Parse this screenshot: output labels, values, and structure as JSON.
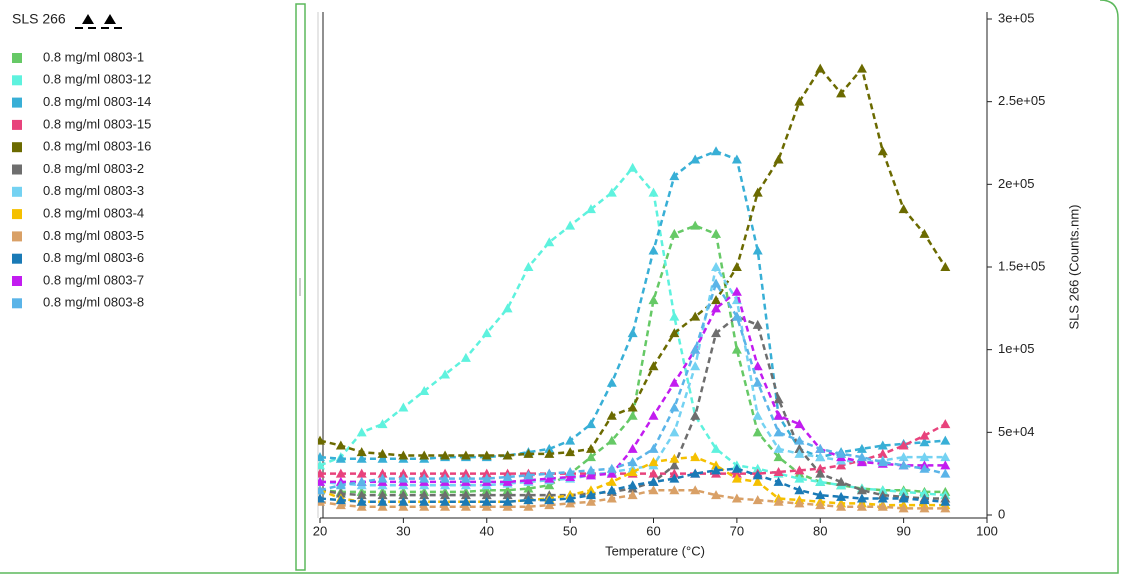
{
  "chart_data": {
    "type": "line",
    "legend_title": "SLS 266",
    "xlabel": "Temperature (°C)",
    "ylabel": "SLS 266  (Counts.nm)",
    "xlim": [
      20,
      100
    ],
    "xticks": [
      20,
      30,
      40,
      50,
      60,
      70,
      80,
      90,
      100
    ],
    "ylim": [
      0,
      300000
    ],
    "yticks": [
      0,
      {
        "value": 50000,
        "label": "5e+04"
      },
      {
        "value": 100000,
        "label": "1e+05"
      },
      {
        "value": 150000,
        "label": "1.5e+05"
      },
      {
        "value": 200000,
        "label": "2e+05"
      },
      {
        "value": 250000,
        "label": "2.5e+05"
      },
      {
        "value": 300000,
        "label": "3e+05"
      }
    ],
    "grid": false,
    "x": [
      20,
      22.5,
      25,
      27.5,
      30,
      32.5,
      35,
      37.5,
      40,
      42.5,
      45,
      47.5,
      50,
      52.5,
      55,
      57.5,
      60,
      62.5,
      65,
      67.5,
      70,
      72.5,
      75,
      77.5,
      80,
      82.5,
      85,
      87.5,
      90,
      92.5,
      95
    ],
    "series": [
      {
        "name": "0.8 mg/ml 0803-1",
        "color": "#66c966",
        "values": [
          15000,
          14000,
          14000,
          14000,
          14000,
          14000,
          14000,
          14000,
          15000,
          15000,
          16000,
          18000,
          25000,
          35000,
          45000,
          60000,
          130000,
          170000,
          175000,
          170000,
          100000,
          50000,
          35000,
          25000,
          20000,
          18000,
          16000,
          15000,
          15000,
          14000,
          14000
        ]
      },
      {
        "name": "0.8 mg/ml 0803-12",
        "color": "#5ef2de",
        "values": [
          30000,
          35000,
          50000,
          55000,
          65000,
          75000,
          85000,
          95000,
          110000,
          125000,
          150000,
          165000,
          175000,
          185000,
          195000,
          210000,
          195000,
          120000,
          60000,
          40000,
          30000,
          28000,
          25000,
          22000,
          20000,
          18000,
          16000,
          15000,
          14000,
          13000,
          12000
        ]
      },
      {
        "name": "0.8 mg/ml 0803-14",
        "color": "#38afd6",
        "values": [
          35000,
          34000,
          34000,
          34000,
          34000,
          34000,
          35000,
          35000,
          35000,
          36000,
          38000,
          40000,
          45000,
          55000,
          80000,
          110000,
          160000,
          205000,
          215000,
          220000,
          215000,
          160000,
          60000,
          40000,
          35000,
          38000,
          40000,
          42000,
          43000,
          44000,
          45000
        ]
      },
      {
        "name": "0.8 mg/ml 0803-15",
        "color": "#e8437c",
        "values": [
          25000,
          25000,
          25000,
          25000,
          25000,
          25000,
          25000,
          25000,
          25000,
          25000,
          25000,
          25000,
          25000,
          25000,
          25000,
          25000,
          25000,
          25000,
          25000,
          25000,
          25000,
          25000,
          26000,
          27000,
          28000,
          30000,
          33000,
          37000,
          42000,
          48000,
          55000
        ]
      },
      {
        "name": "0.8 mg/ml 0803-16",
        "color": "#6b6a00",
        "values": [
          45000,
          42000,
          38000,
          37000,
          36000,
          36000,
          36000,
          36000,
          36000,
          36000,
          37000,
          37000,
          38000,
          40000,
          60000,
          65000,
          90000,
          110000,
          120000,
          130000,
          150000,
          195000,
          215000,
          250000,
          270000,
          255000,
          270000,
          220000,
          185000,
          170000,
          150000
        ]
      },
      {
        "name": "0.8 mg/ml 0803-2",
        "color": "#6e6e6e",
        "values": [
          15000,
          13000,
          12000,
          12000,
          12000,
          12000,
          12000,
          12000,
          12000,
          12000,
          12000,
          12000,
          12000,
          13000,
          14000,
          16000,
          20000,
          30000,
          60000,
          110000,
          120000,
          115000,
          70000,
          40000,
          25000,
          20000,
          15000,
          12000,
          11000,
          10000,
          10000
        ]
      },
      {
        "name": "0.8 mg/ml 0803-3",
        "color": "#74d2f2",
        "values": [
          20000,
          19000,
          18000,
          18000,
          18000,
          18000,
          18000,
          18000,
          18000,
          19000,
          20000,
          21000,
          22000,
          24000,
          26000,
          28000,
          30000,
          50000,
          90000,
          150000,
          130000,
          60000,
          40000,
          37000,
          35000,
          33000,
          32000,
          33000,
          35000,
          35000,
          35000
        ]
      },
      {
        "name": "0.8 mg/ml 0803-4",
        "color": "#f5c000",
        "values": [
          15000,
          10000,
          8000,
          8000,
          8000,
          8000,
          8000,
          8000,
          8000,
          8000,
          9000,
          10000,
          12000,
          15000,
          20000,
          26000,
          32000,
          34000,
          35000,
          30000,
          22000,
          20000,
          10000,
          9000,
          8000,
          7000,
          7000,
          6000,
          6000,
          6000,
          6000
        ]
      },
      {
        "name": "0.8 mg/ml 0803-5",
        "color": "#d9a066",
        "values": [
          8000,
          6000,
          5000,
          5000,
          5000,
          5000,
          5000,
          5000,
          5000,
          5000,
          5000,
          6000,
          7000,
          8000,
          10000,
          12000,
          15000,
          15000,
          15000,
          12000,
          10000,
          9000,
          8000,
          7000,
          6000,
          5000,
          5000,
          5000,
          4000,
          4000,
          4000
        ]
      },
      {
        "name": "0.8 mg/ml 0803-6",
        "color": "#1a7ab6",
        "values": [
          10000,
          9000,
          8000,
          8000,
          8000,
          8000,
          8000,
          8000,
          8000,
          8000,
          9000,
          9000,
          10000,
          12000,
          15000,
          18000,
          20000,
          22000,
          25000,
          27000,
          28000,
          24000,
          20000,
          15000,
          12000,
          11000,
          10000,
          10000,
          10000,
          9000,
          8000
        ]
      },
      {
        "name": "0.8 mg/ml 0803-7",
        "color": "#c21cf0",
        "values": [
          20000,
          20000,
          20000,
          20000,
          20000,
          20000,
          20000,
          20000,
          20000,
          20000,
          21000,
          22000,
          23000,
          24000,
          25000,
          40000,
          60000,
          80000,
          100000,
          125000,
          135000,
          90000,
          60000,
          55000,
          40000,
          35000,
          32000,
          31000,
          30000,
          30000,
          30000
        ]
      },
      {
        "name": "0.8 mg/ml 0803-8",
        "color": "#5ab4e8",
        "values": [
          15000,
          18000,
          20000,
          22000,
          22000,
          22000,
          22000,
          22000,
          22000,
          23000,
          24000,
          25000,
          26000,
          27000,
          28000,
          32000,
          40000,
          65000,
          100000,
          140000,
          120000,
          80000,
          50000,
          45000,
          40000,
          37000,
          35000,
          32000,
          30000,
          28000,
          25000
        ]
      }
    ]
  }
}
